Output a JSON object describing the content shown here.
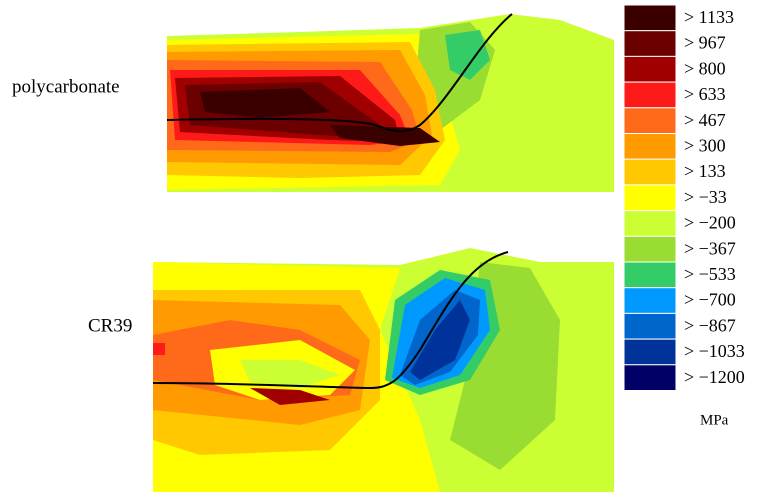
{
  "panels": [
    {
      "label": "polycarbonate"
    },
    {
      "label": "CR39"
    }
  ],
  "legend": {
    "items": [
      {
        "label": "> 1133",
        "color": "#3a0000"
      },
      {
        "label": "> 967",
        "color": "#6b0000"
      },
      {
        "label": "> 800",
        "color": "#a00000"
      },
      {
        "label": "> 633",
        "color": "#ff1a1a"
      },
      {
        "label": "> 467",
        "color": "#ff6a1a"
      },
      {
        "label": "> 300",
        "color": "#ff9a00"
      },
      {
        "label": "> 133",
        "color": "#ffc800"
      },
      {
        "label": "> −33",
        "color": "#ffff00"
      },
      {
        "label": "> −200",
        "color": "#ccff33"
      },
      {
        "label": "> −367",
        "color": "#99dd33"
      },
      {
        "label": "> −533",
        "color": "#33cc66"
      },
      {
        "label": "> −700",
        "color": "#0099ff"
      },
      {
        "label": "> −867",
        "color": "#0066cc"
      },
      {
        "label": "> −1033",
        "color": "#003399"
      },
      {
        "label": "> −1200",
        "color": "#000066"
      }
    ],
    "unit": "MPa"
  }
}
